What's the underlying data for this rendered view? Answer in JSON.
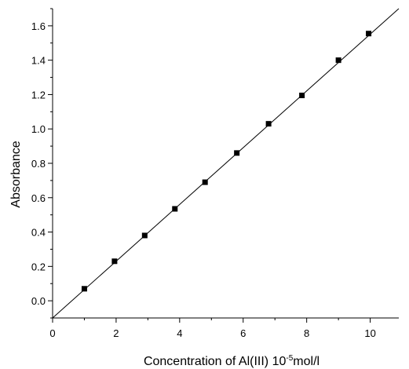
{
  "chart_data": {
    "type": "scatter",
    "title": "",
    "xlabel": {
      "prefix": "Concentration of Al(III) 10",
      "superscript": "-5",
      "suffix": "mol/l"
    },
    "ylabel": "Absorbance",
    "xlim": [
      0,
      10.9
    ],
    "ylim": [
      -0.1,
      1.7
    ],
    "xticks": [
      0,
      2,
      4,
      6,
      8,
      10
    ],
    "xtick_labels": [
      "0",
      "2",
      "4",
      "6",
      "8",
      "10"
    ],
    "yticks": [
      0.0,
      0.2,
      0.4,
      0.6,
      0.8,
      1.0,
      1.2,
      1.4,
      1.6
    ],
    "ytick_labels": [
      "0.0",
      "0.2",
      "0.4",
      "0.6",
      "0.8",
      "1.0",
      "1.2",
      "1.4",
      "1.6"
    ],
    "grid": false,
    "series": [
      {
        "marker": "square",
        "x": [
          1.0,
          1.95,
          2.9,
          3.85,
          4.8,
          5.8,
          6.8,
          7.85,
          9.0,
          9.95
        ],
        "y": [
          0.07,
          0.23,
          0.38,
          0.535,
          0.69,
          0.86,
          1.03,
          1.195,
          1.4,
          1.555
        ]
      }
    ],
    "fit_line": {
      "x": [
        0,
        10.9
      ],
      "y": [
        -0.1,
        1.7
      ]
    }
  }
}
